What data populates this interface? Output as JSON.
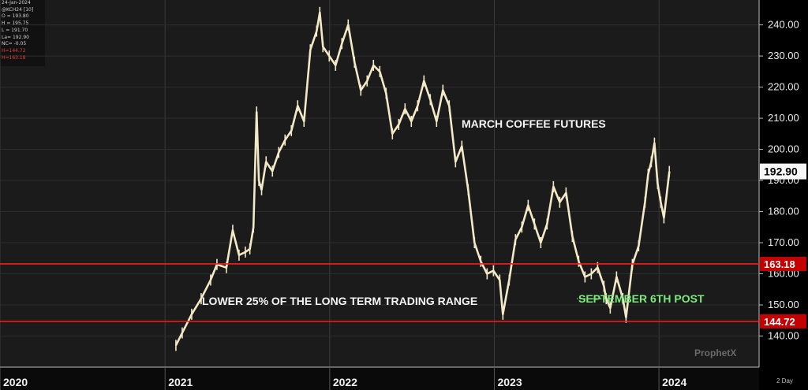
{
  "info_box": {
    "date": "24-Jan-2024",
    "symbol": "@KCH24 [10]",
    "open": "O = 193.80",
    "high": "H = 195.75",
    "low": "L = 191.70",
    "last": "La= 192.90",
    "net_change": "NC= -0.05",
    "line1": "H=144.72",
    "line2": "H=163.18"
  },
  "chart_data": {
    "type": "line",
    "title": "MARCH COFFEE FUTURES",
    "ylim": [
      130,
      248
    ],
    "y_ticks": [
      "140.00",
      "150.00",
      "160.00",
      "170.00",
      "180.00",
      "190.00",
      "200.00",
      "210.00",
      "220.00",
      "230.00",
      "240.00"
    ],
    "y_tick_values": [
      140,
      150,
      160,
      170,
      180,
      190,
      200,
      210,
      220,
      230,
      240
    ],
    "x_ticks": [
      "2020",
      "2021",
      "2022",
      "2023",
      "2024"
    ],
    "x_tick_dates": [
      "2020-01-01",
      "2021-01-01",
      "2022-01-01",
      "2023-01-01",
      "2024-01-01"
    ],
    "x_range": [
      "2020-01-01",
      "2024-08-10"
    ],
    "last_price": "192.90",
    "last_price_value": 192.9,
    "horizontal_lines": [
      {
        "label": "163.18",
        "value": 163.18,
        "color": "#ff1a1a"
      },
      {
        "label": "144.72",
        "value": 144.72,
        "color": "#ff1a1a"
      }
    ],
    "annotations": [
      {
        "text": "LOWER 25% OF THE LONG TERM TRADING RANGE"
      },
      {
        "text": "SEPTEMBER 6TH POST",
        "date": "2023-09-06",
        "value": 152,
        "color": "#7dea7d"
      }
    ],
    "period_label": "2 Day",
    "watermark": "ProphetX",
    "series": [
      {
        "color": "#f3e9c6",
        "points": [
          [
            "2021-01-25",
            137
          ],
          [
            "2021-02-08",
            141
          ],
          [
            "2021-03-01",
            147
          ],
          [
            "2021-03-22",
            152
          ],
          [
            "2021-04-12",
            158
          ],
          [
            "2021-04-26",
            163
          ],
          [
            "2021-05-17",
            162
          ],
          [
            "2021-05-31",
            174
          ],
          [
            "2021-06-14",
            166
          ],
          [
            "2021-06-28",
            167
          ],
          [
            "2021-07-08",
            168
          ],
          [
            "2021-07-16",
            175
          ],
          [
            "2021-07-23",
            212
          ],
          [
            "2021-07-28",
            190
          ],
          [
            "2021-08-03",
            187
          ],
          [
            "2021-08-13",
            196
          ],
          [
            "2021-08-27",
            193
          ],
          [
            "2021-09-10",
            199
          ],
          [
            "2021-09-24",
            203
          ],
          [
            "2021-10-08",
            206
          ],
          [
            "2021-10-22",
            214
          ],
          [
            "2021-11-05",
            209
          ],
          [
            "2021-11-19",
            232
          ],
          [
            "2021-12-03",
            238
          ],
          [
            "2021-12-10",
            244
          ],
          [
            "2021-12-17",
            233
          ],
          [
            "2021-12-31",
            230
          ],
          [
            "2022-01-14",
            227
          ],
          [
            "2022-01-28",
            234
          ],
          [
            "2022-02-11",
            240
          ],
          [
            "2022-02-25",
            228
          ],
          [
            "2022-03-11",
            219
          ],
          [
            "2022-03-25",
            222
          ],
          [
            "2022-04-08",
            227
          ],
          [
            "2022-04-22",
            225
          ],
          [
            "2022-05-06",
            218
          ],
          [
            "2022-05-20",
            205
          ],
          [
            "2022-06-03",
            208
          ],
          [
            "2022-06-17",
            213
          ],
          [
            "2022-07-01",
            209
          ],
          [
            "2022-07-15",
            214
          ],
          [
            "2022-07-29",
            222
          ],
          [
            "2022-08-12",
            216
          ],
          [
            "2022-08-26",
            209
          ],
          [
            "2022-09-09",
            219
          ],
          [
            "2022-09-23",
            214
          ],
          [
            "2022-10-07",
            196
          ],
          [
            "2022-10-21",
            201
          ],
          [
            "2022-11-04",
            187
          ],
          [
            "2022-11-18",
            170
          ],
          [
            "2022-12-02",
            164
          ],
          [
            "2022-12-16",
            160
          ],
          [
            "2022-12-30",
            161
          ],
          [
            "2023-01-13",
            158
          ],
          [
            "2023-01-20",
            147
          ],
          [
            "2023-02-03",
            158
          ],
          [
            "2023-02-17",
            171
          ],
          [
            "2023-03-03",
            175
          ],
          [
            "2023-03-17",
            182
          ],
          [
            "2023-03-31",
            176
          ],
          [
            "2023-04-14",
            170
          ],
          [
            "2023-04-28",
            176
          ],
          [
            "2023-05-12",
            188
          ],
          [
            "2023-05-26",
            183
          ],
          [
            "2023-06-09",
            186
          ],
          [
            "2023-06-23",
            172
          ],
          [
            "2023-07-07",
            164
          ],
          [
            "2023-07-21",
            159
          ],
          [
            "2023-08-04",
            160
          ],
          [
            "2023-08-18",
            162
          ],
          [
            "2023-09-01",
            156
          ],
          [
            "2023-09-06",
            152
          ],
          [
            "2023-09-15",
            149
          ],
          [
            "2023-09-29",
            159
          ],
          [
            "2023-10-13",
            152
          ],
          [
            "2023-10-20",
            146
          ],
          [
            "2023-11-03",
            163
          ],
          [
            "2023-11-17",
            169
          ],
          [
            "2023-12-01",
            183
          ],
          [
            "2023-12-08",
            192
          ],
          [
            "2023-12-15",
            196
          ],
          [
            "2023-12-22",
            202
          ],
          [
            "2023-12-29",
            189
          ],
          [
            "2024-01-05",
            183
          ],
          [
            "2024-01-12",
            178
          ],
          [
            "2024-01-24",
            192.9
          ]
        ]
      }
    ]
  }
}
